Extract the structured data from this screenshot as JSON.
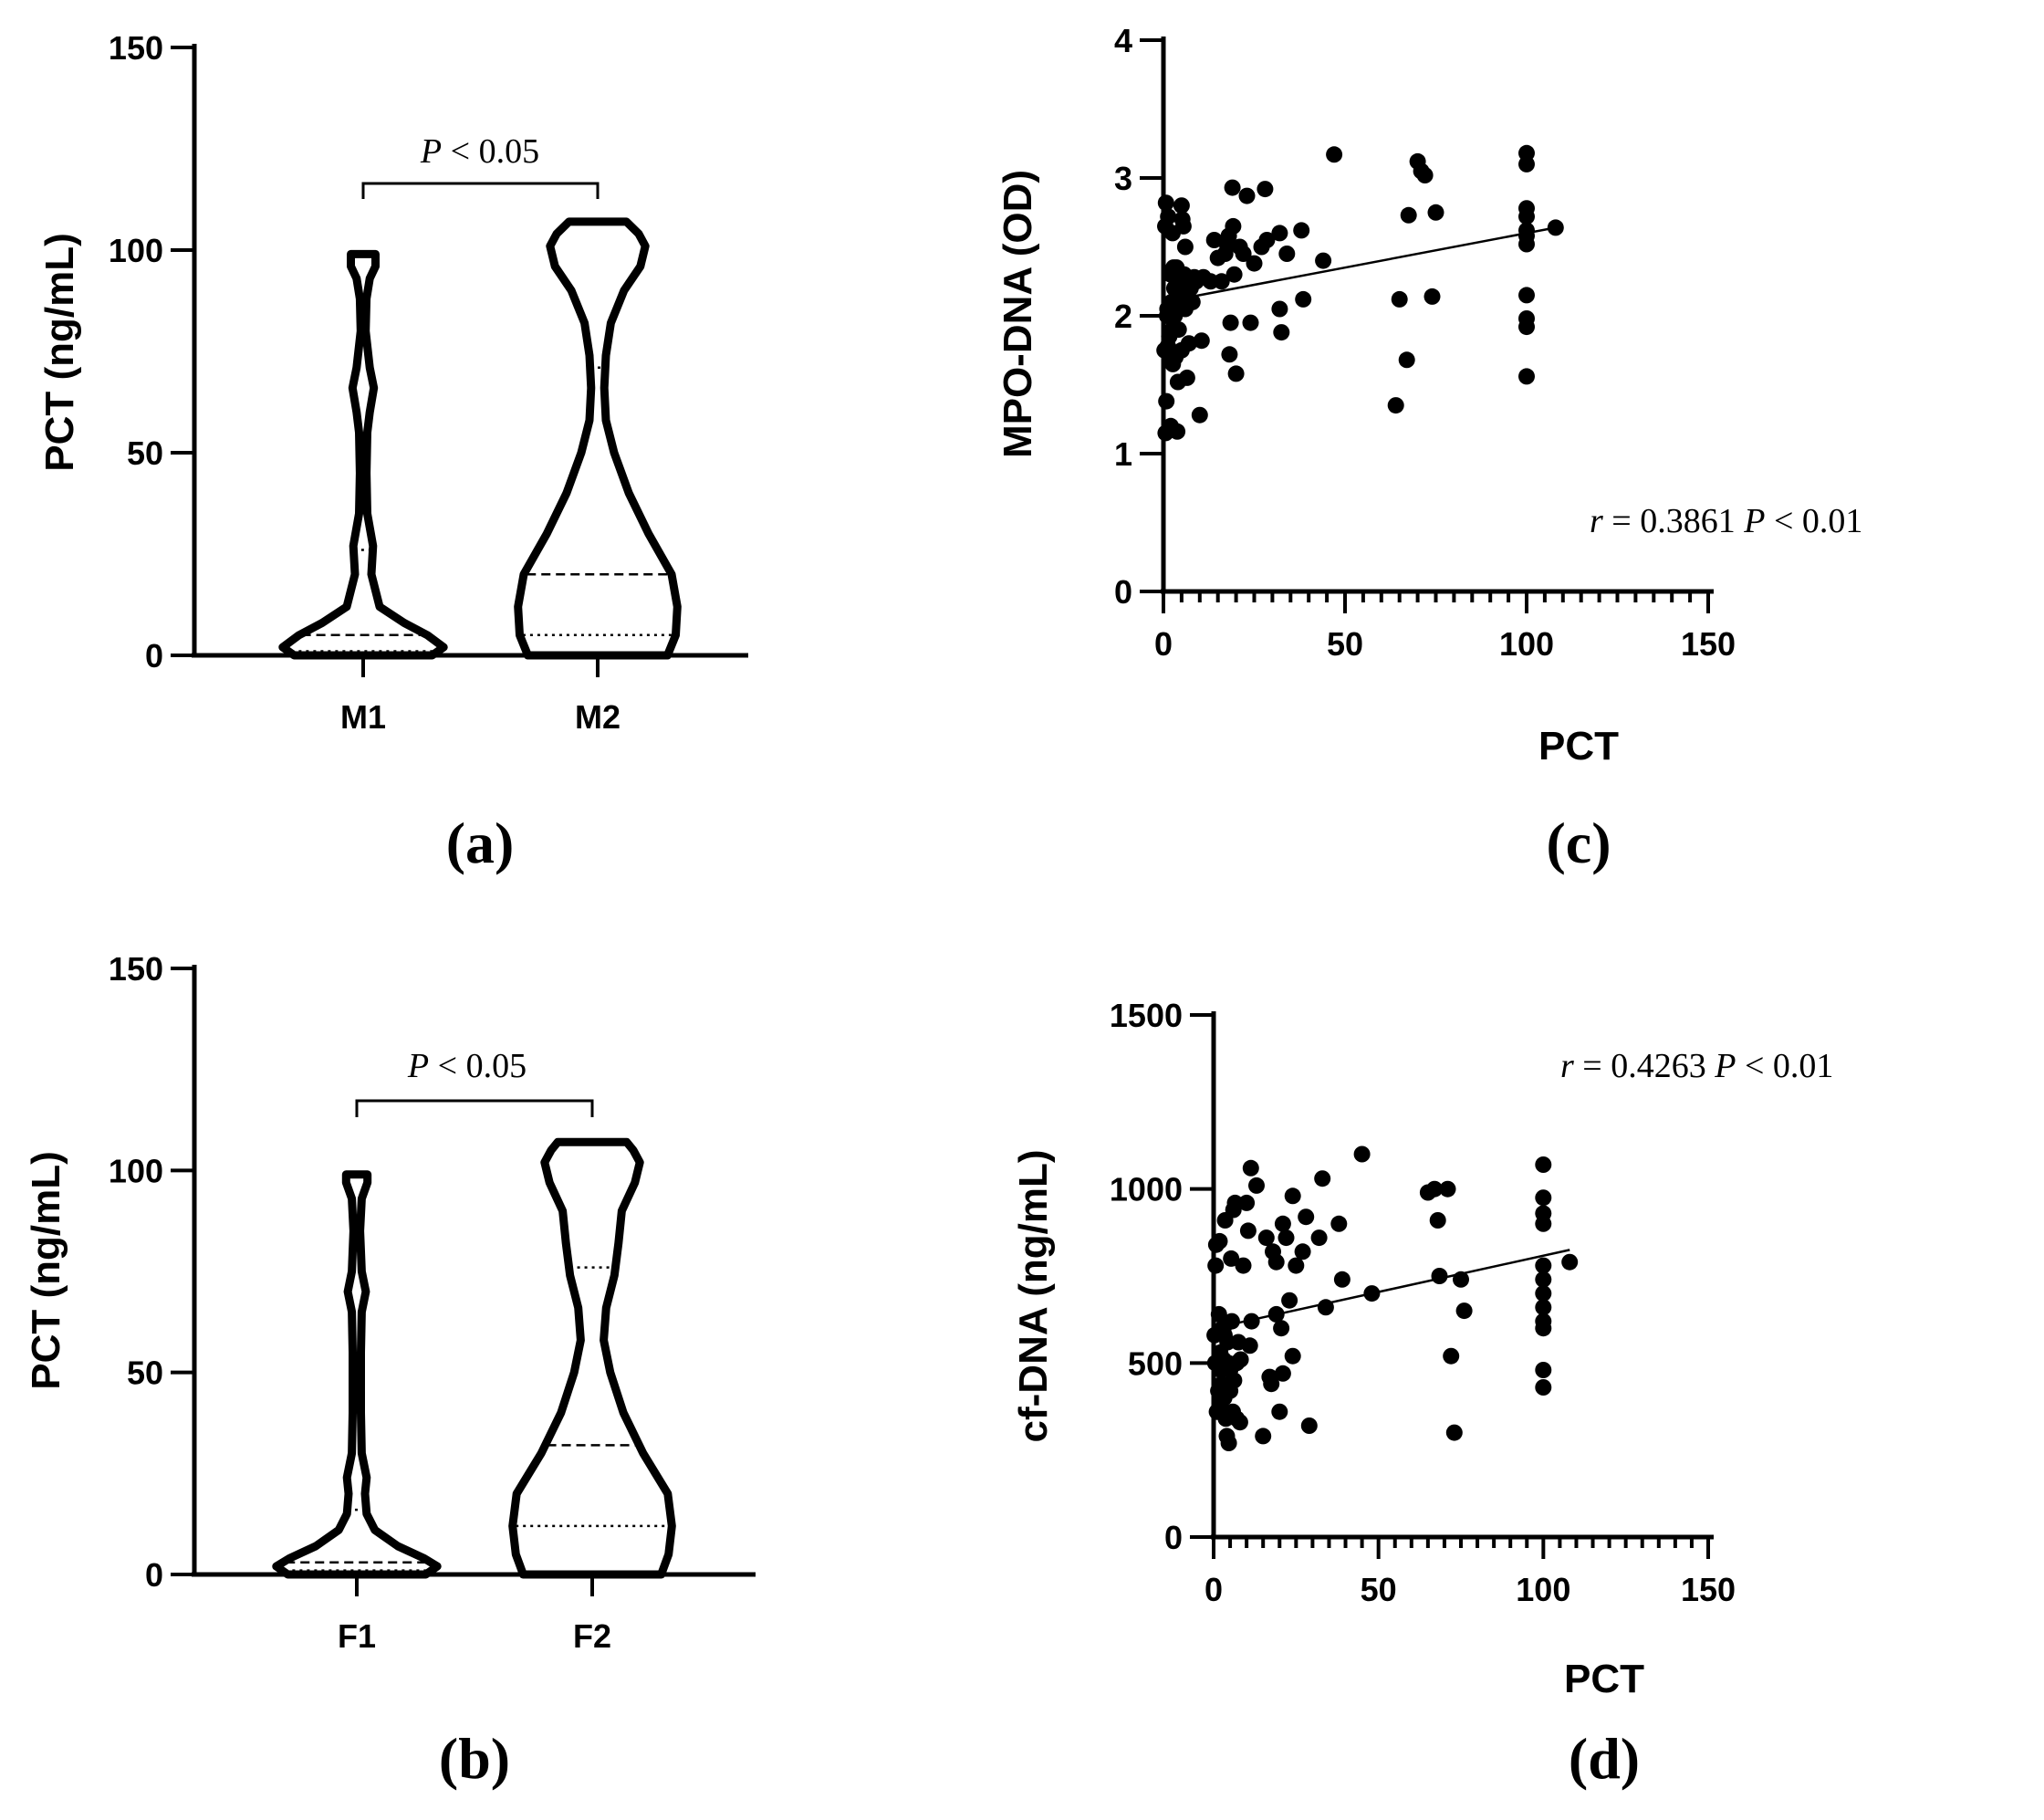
{
  "chart_data": [
    {
      "panel": "a",
      "type": "violin",
      "panel_label": "(a)",
      "ylabel": "PCT (ng/mL)",
      "xlabel": "",
      "ylim": [
        0,
        150
      ],
      "yticks": [
        "0",
        "50",
        "100",
        "150"
      ],
      "categories": [
        "M1",
        "M2"
      ],
      "annotation": {
        "symbol": "P",
        "text": " < 0.05"
      },
      "groups": [
        {
          "name": "M1",
          "median": 5,
          "q1": 1,
          "q3": 26,
          "density": [
            {
              "y": 0,
              "w": 0.84
            },
            {
              "y": 2,
              "w": 0.98
            },
            {
              "y": 5,
              "w": 0.78
            },
            {
              "y": 8,
              "w": 0.5
            },
            {
              "y": 12,
              "w": 0.2
            },
            {
              "y": 20,
              "w": 0.1
            },
            {
              "y": 27,
              "w": 0.12
            },
            {
              "y": 35,
              "w": 0.05
            },
            {
              "y": 45,
              "w": 0.04
            },
            {
              "y": 55,
              "w": 0.05
            },
            {
              "y": 60,
              "w": 0.08
            },
            {
              "y": 66,
              "w": 0.13
            },
            {
              "y": 71,
              "w": 0.08
            },
            {
              "y": 80,
              "w": 0.03
            },
            {
              "y": 88,
              "w": 0.04
            },
            {
              "y": 93,
              "w": 0.08
            },
            {
              "y": 96,
              "w": 0.15
            },
            {
              "y": 99,
              "w": 0.15
            }
          ]
        },
        {
          "name": "M2",
          "median": 20,
          "q1": 5,
          "q3": 71,
          "density": [
            {
              "y": 0,
              "w": 0.85
            },
            {
              "y": 5,
              "w": 0.95
            },
            {
              "y": 12,
              "w": 0.97
            },
            {
              "y": 20,
              "w": 0.9
            },
            {
              "y": 30,
              "w": 0.62
            },
            {
              "y": 40,
              "w": 0.38
            },
            {
              "y": 50,
              "w": 0.2
            },
            {
              "y": 58,
              "w": 0.1
            },
            {
              "y": 66,
              "w": 0.08
            },
            {
              "y": 74,
              "w": 0.1
            },
            {
              "y": 82,
              "w": 0.16
            },
            {
              "y": 90,
              "w": 0.32
            },
            {
              "y": 96,
              "w": 0.52
            },
            {
              "y": 101,
              "w": 0.58
            },
            {
              "y": 104,
              "w": 0.5
            },
            {
              "y": 107,
              "w": 0.35
            }
          ]
        }
      ]
    },
    {
      "panel": "b",
      "type": "violin",
      "panel_label": "(b)",
      "ylabel": "PCT (ng/mL)",
      "xlabel": "",
      "ylim": [
        0,
        150
      ],
      "yticks": [
        "0",
        "50",
        "100",
        "150"
      ],
      "categories": [
        "F1",
        "F2"
      ],
      "annotation": {
        "symbol": "P",
        "text": " < 0.05"
      },
      "groups": [
        {
          "name": "F1",
          "median": 3,
          "q1": 1,
          "q3": 16,
          "density": [
            {
              "y": 0,
              "w": 0.84
            },
            {
              "y": 2,
              "w": 0.98
            },
            {
              "y": 4,
              "w": 0.82
            },
            {
              "y": 7,
              "w": 0.5
            },
            {
              "y": 11,
              "w": 0.22
            },
            {
              "y": 15,
              "w": 0.12
            },
            {
              "y": 20,
              "w": 0.1
            },
            {
              "y": 24,
              "w": 0.12
            },
            {
              "y": 30,
              "w": 0.06
            },
            {
              "y": 40,
              "w": 0.05
            },
            {
              "y": 55,
              "w": 0.05
            },
            {
              "y": 65,
              "w": 0.06
            },
            {
              "y": 70,
              "w": 0.11
            },
            {
              "y": 75,
              "w": 0.06
            },
            {
              "y": 85,
              "w": 0.04
            },
            {
              "y": 93,
              "w": 0.06
            },
            {
              "y": 97,
              "w": 0.13
            },
            {
              "y": 99,
              "w": 0.13
            }
          ]
        },
        {
          "name": "F2",
          "median": 32,
          "q1": 12,
          "q3": 76,
          "density": [
            {
              "y": 0,
              "w": 0.84
            },
            {
              "y": 5,
              "w": 0.93
            },
            {
              "y": 12,
              "w": 0.97
            },
            {
              "y": 20,
              "w": 0.92
            },
            {
              "y": 30,
              "w": 0.62
            },
            {
              "y": 40,
              "w": 0.38
            },
            {
              "y": 50,
              "w": 0.22
            },
            {
              "y": 58,
              "w": 0.14
            },
            {
              "y": 66,
              "w": 0.17
            },
            {
              "y": 74,
              "w": 0.27
            },
            {
              "y": 82,
              "w": 0.32
            },
            {
              "y": 90,
              "w": 0.36
            },
            {
              "y": 97,
              "w": 0.52
            },
            {
              "y": 102,
              "w": 0.58
            },
            {
              "y": 105,
              "w": 0.5
            },
            {
              "y": 107,
              "w": 0.42
            }
          ]
        }
      ]
    },
    {
      "panel": "c",
      "type": "scatter",
      "panel_label": "(c)",
      "xlabel": "PCT",
      "ylabel": "MPO-DNA (OD)",
      "xlim": [
        0,
        150
      ],
      "ylim": [
        0,
        4
      ],
      "xticks": [
        "0",
        "50",
        "100",
        "150"
      ],
      "yticks": [
        "0",
        "1",
        "2",
        "3",
        "4"
      ],
      "annotation": {
        "r_symbol": "r",
        "r_text": " = 0.3861 ",
        "p_symbol": "P",
        "p_text": " < 0.01"
      },
      "fit_line": {
        "x": [
          0,
          108
        ],
        "y": [
          2.1,
          2.64
        ]
      },
      "points": [
        [
          0.3,
          1.75
        ],
        [
          0.5,
          2.65
        ],
        [
          0.6,
          1.15
        ],
        [
          0.7,
          2.82
        ],
        [
          0.8,
          1.38
        ],
        [
          1,
          2.0
        ],
        [
          1.1,
          2.05
        ],
        [
          1.2,
          1.78
        ],
        [
          1.3,
          2.72
        ],
        [
          1.5,
          2.02
        ],
        [
          1.6,
          1.85
        ],
        [
          1.8,
          1.72
        ],
        [
          2,
          2.3
        ],
        [
          2,
          1.2
        ],
        [
          2.2,
          2.1
        ],
        [
          2.4,
          1.9
        ],
        [
          2.5,
          2.6
        ],
        [
          2.6,
          1.65
        ],
        [
          2.8,
          2.35
        ],
        [
          3,
          2.2
        ],
        [
          3.1,
          2.0
        ],
        [
          3.3,
          1.7
        ],
        [
          3.5,
          2.1
        ],
        [
          3.6,
          2.35
        ],
        [
          3.8,
          1.16
        ],
        [
          4,
          1.52
        ],
        [
          4,
          2.25
        ],
        [
          4.2,
          1.9
        ],
        [
          4.5,
          2.05
        ],
        [
          4.7,
          2.15
        ],
        [
          5,
          1.75
        ],
        [
          5,
          2.8
        ],
        [
          5.2,
          2.7
        ],
        [
          5.5,
          2.65
        ],
        [
          5.7,
          2.3
        ],
        [
          6,
          2.05
        ],
        [
          6,
          2.5
        ],
        [
          6.5,
          1.55
        ],
        [
          7,
          1.8
        ],
        [
          7.5,
          2.2
        ],
        [
          8,
          2.1
        ],
        [
          8.5,
          2.28
        ],
        [
          9,
          2.25
        ],
        [
          10,
          1.28
        ],
        [
          10.5,
          1.82
        ],
        [
          11,
          2.28
        ],
        [
          13,
          2.25
        ],
        [
          14,
          2.55
        ],
        [
          15,
          2.42
        ],
        [
          16,
          2.25
        ],
        [
          17,
          2.45
        ],
        [
          17.5,
          2.52
        ],
        [
          18,
          2.58
        ],
        [
          18.2,
          1.72
        ],
        [
          18.5,
          1.95
        ],
        [
          19,
          2.93
        ],
        [
          19.2,
          2.65
        ],
        [
          19.5,
          2.3
        ],
        [
          20,
          1.58
        ],
        [
          21,
          2.5
        ],
        [
          22,
          2.45
        ],
        [
          23,
          2.87
        ],
        [
          24,
          1.95
        ],
        [
          25,
          2.38
        ],
        [
          27,
          2.5
        ],
        [
          28,
          2.92
        ],
        [
          28.5,
          2.55
        ],
        [
          32,
          2.05
        ],
        [
          32,
          2.6
        ],
        [
          32.5,
          1.88
        ],
        [
          34,
          2.45
        ],
        [
          38,
          2.62
        ],
        [
          38.5,
          2.12
        ],
        [
          44,
          2.4
        ],
        [
          47,
          3.17
        ],
        [
          64,
          1.35
        ],
        [
          65,
          2.12
        ],
        [
          67,
          1.68
        ],
        [
          67.5,
          2.73
        ],
        [
          70,
          3.12
        ],
        [
          71,
          3.05
        ],
        [
          72,
          3.02
        ],
        [
          74,
          2.14
        ],
        [
          75,
          2.75
        ],
        [
          100,
          3.18
        ],
        [
          100,
          3.1
        ],
        [
          100,
          2.78
        ],
        [
          100,
          2.72
        ],
        [
          100,
          2.62
        ],
        [
          100,
          2.58
        ],
        [
          100,
          2.52
        ],
        [
          100,
          2.15
        ],
        [
          100,
          1.98
        ],
        [
          100,
          1.92
        ],
        [
          100,
          1.56
        ],
        [
          108,
          2.64
        ]
      ]
    },
    {
      "panel": "d",
      "type": "scatter",
      "panel_label": "(d)",
      "xlabel": "PCT",
      "ylabel": "cf-DNA (ng/mL)",
      "xlim": [
        0,
        150
      ],
      "ylim": [
        0,
        1500
      ],
      "xticks": [
        "0",
        "50",
        "100",
        "150"
      ],
      "yticks": [
        "0",
        "500",
        "1000",
        "1500"
      ],
      "annotation": {
        "r_symbol": "r",
        "r_text": " = 0.4263  ",
        "p_symbol": "P",
        "p_text": " < 0.01"
      },
      "fit_line": {
        "x": [
          0,
          108
        ],
        "y": [
          600,
          825
        ]
      },
      "points": [
        [
          0.3,
          580
        ],
        [
          0.5,
          500
        ],
        [
          0.6,
          780
        ],
        [
          0.8,
          840
        ],
        [
          1,
          360
        ],
        [
          1.2,
          500
        ],
        [
          1.4,
          420
        ],
        [
          1.6,
          640
        ],
        [
          1.8,
          850
        ],
        [
          2,
          530
        ],
        [
          2,
          380
        ],
        [
          2.2,
          480
        ],
        [
          2.5,
          440
        ],
        [
          2.7,
          600
        ],
        [
          3,
          600
        ],
        [
          3,
          510
        ],
        [
          3.2,
          400
        ],
        [
          3.3,
          580
        ],
        [
          3.5,
          910
        ],
        [
          3.7,
          340
        ],
        [
          4,
          290
        ],
        [
          4.2,
          560
        ],
        [
          4.4,
          500
        ],
        [
          4.6,
          270
        ],
        [
          5,
          480
        ],
        [
          5,
          420
        ],
        [
          5.3,
          800
        ],
        [
          5.5,
          620
        ],
        [
          5.8,
          360
        ],
        [
          6,
          940
        ],
        [
          6.2,
          450
        ],
        [
          6.5,
          960
        ],
        [
          7,
          500
        ],
        [
          7,
          340
        ],
        [
          7.5,
          560
        ],
        [
          8,
          330
        ],
        [
          8.2,
          510
        ],
        [
          9,
          780
        ],
        [
          10,
          960
        ],
        [
          10.5,
          880
        ],
        [
          11,
          550
        ],
        [
          11.5,
          620
        ],
        [
          11.3,
          1060
        ],
        [
          13,
          1010
        ],
        [
          15,
          290
        ],
        [
          16,
          860
        ],
        [
          17,
          460
        ],
        [
          17.5,
          440
        ],
        [
          18,
          820
        ],
        [
          19,
          790
        ],
        [
          19,
          640
        ],
        [
          20,
          360
        ],
        [
          20.5,
          600
        ],
        [
          21,
          470
        ],
        [
          21,
          900
        ],
        [
          22,
          860
        ],
        [
          23,
          680
        ],
        [
          24,
          980
        ],
        [
          24,
          520
        ],
        [
          25,
          780
        ],
        [
          27,
          820
        ],
        [
          28,
          920
        ],
        [
          29,
          320
        ],
        [
          32,
          860
        ],
        [
          33,
          1030
        ],
        [
          34,
          660
        ],
        [
          38,
          900
        ],
        [
          39,
          740
        ],
        [
          45,
          1100
        ],
        [
          48,
          700
        ],
        [
          65,
          990
        ],
        [
          67,
          1000
        ],
        [
          68,
          910
        ],
        [
          68.5,
          750
        ],
        [
          71,
          1000
        ],
        [
          72,
          520
        ],
        [
          73,
          300
        ],
        [
          75,
          740
        ],
        [
          76,
          650
        ],
        [
          100,
          1070
        ],
        [
          100,
          975
        ],
        [
          100,
          930
        ],
        [
          100,
          900
        ],
        [
          100,
          780
        ],
        [
          100,
          740
        ],
        [
          100,
          700
        ],
        [
          100,
          660
        ],
        [
          100,
          620
        ],
        [
          100,
          600
        ],
        [
          100,
          480
        ],
        [
          100,
          430
        ],
        [
          108,
          790
        ]
      ]
    }
  ]
}
